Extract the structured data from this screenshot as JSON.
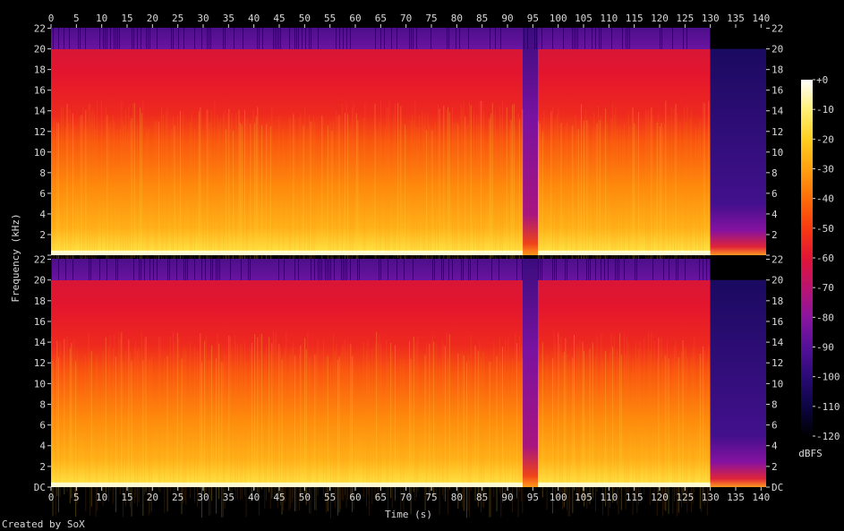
{
  "chart_data": {
    "type": "heatmap",
    "title": "",
    "xlabel": "Time (s)",
    "ylabel": "Frequency (kHz)",
    "xlim": [
      0,
      141
    ],
    "ylim": [
      0,
      22.05
    ],
    "x_ticks": [
      0,
      5,
      10,
      15,
      20,
      25,
      30,
      35,
      40,
      45,
      50,
      55,
      60,
      65,
      70,
      75,
      80,
      85,
      90,
      95,
      100,
      105,
      110,
      115,
      120,
      125,
      130,
      135,
      140
    ],
    "y_ticks": [
      "DC",
      "2",
      "4",
      "6",
      "8",
      "10",
      "12",
      "14",
      "16",
      "18",
      "20",
      "22"
    ],
    "y_tick_values": [
      0,
      2,
      4,
      6,
      8,
      10,
      12,
      14,
      16,
      18,
      20,
      22
    ],
    "channels": 2,
    "audio_end_s": 130,
    "gap_segment_s": [
      93,
      96
    ],
    "lowpass_cutoff_khz": 20,
    "colorbar": {
      "label": "dBFS",
      "ticks": [
        "+0",
        "-10",
        "-20",
        "-30",
        "-40",
        "-50",
        "-60",
        "-70",
        "-80",
        "-90",
        "-100",
        "-110",
        "-120"
      ],
      "tick_values": [
        0,
        -10,
        -20,
        -30,
        -40,
        -50,
        -60,
        -70,
        -80,
        -90,
        -100,
        -110,
        -120
      ],
      "range": [
        -120,
        0
      ],
      "stops": [
        {
          "db": -120,
          "color": "#000000"
        },
        {
          "db": -110,
          "color": "#0c0544"
        },
        {
          "db": -100,
          "color": "#2b0a78"
        },
        {
          "db": -90,
          "color": "#55109a"
        },
        {
          "db": -80,
          "color": "#8a15a0"
        },
        {
          "db": -70,
          "color": "#bb1370"
        },
        {
          "db": -60,
          "color": "#e21535"
        },
        {
          "db": -50,
          "color": "#f83a10"
        },
        {
          "db": -40,
          "color": "#fe6d08"
        },
        {
          "db": -30,
          "color": "#ffa010"
        },
        {
          "db": -20,
          "color": "#ffcf20"
        },
        {
          "db": -10,
          "color": "#fff078"
        },
        {
          "db": 0,
          "color": "#ffffff"
        }
      ]
    }
  },
  "footer": {
    "credit": "Created by SoX"
  }
}
